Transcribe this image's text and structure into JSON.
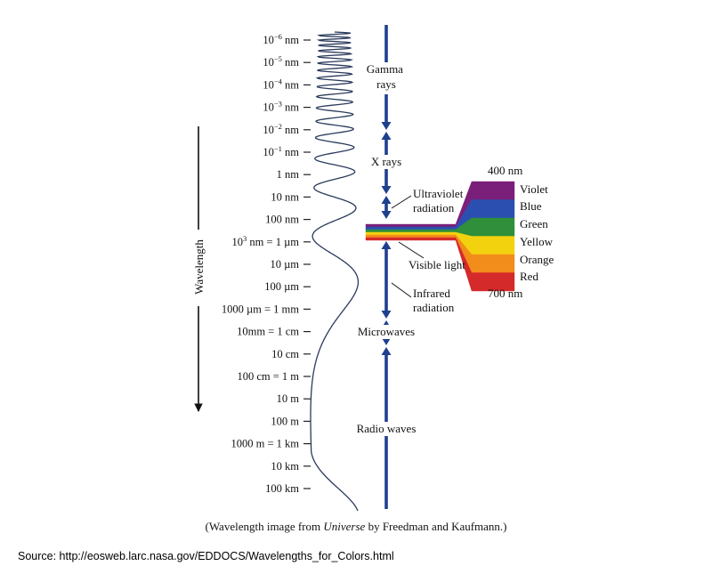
{
  "colors": {
    "arrow": "#1f3f8f",
    "ink": "#222222",
    "text": "#111111",
    "rainbow": [
      "#7a1f7a",
      "#2b4fb0",
      "#2f8f3a",
      "#f2d20f",
      "#f28c1a",
      "#d42a2a"
    ]
  },
  "axis": {
    "title": "Wavelength",
    "ticks": [
      {
        "base": "10",
        "exp": "−6",
        "after": " nm"
      },
      {
        "base": "10",
        "exp": "−5",
        "after": " nm"
      },
      {
        "base": "10",
        "exp": "−4",
        "after": " nm"
      },
      {
        "base": "10",
        "exp": "−3",
        "after": " nm"
      },
      {
        "base": "10",
        "exp": "−2",
        "after": " nm"
      },
      {
        "base": "10",
        "exp": "−1",
        "after": " nm"
      },
      {
        "text": "1 nm"
      },
      {
        "text": "10 nm"
      },
      {
        "text": "100 nm"
      },
      {
        "base": "10",
        "exp": "3",
        "after": " nm = 1 µm"
      },
      {
        "text": "10 µm"
      },
      {
        "text": "100 µm"
      },
      {
        "text": "1000 µm = 1 mm"
      },
      {
        "text": "10mm = 1 cm"
      },
      {
        "text": "10 cm"
      },
      {
        "text": "100 cm = 1 m"
      },
      {
        "text": "10 m"
      },
      {
        "text": "100 m"
      },
      {
        "text": "1000 m = 1 km"
      },
      {
        "text": "10 km"
      },
      {
        "text": "100 km"
      }
    ]
  },
  "bands": {
    "gamma": [
      "Gamma",
      "rays"
    ],
    "xrays": "X rays",
    "uv": [
      "Ultraviolet",
      "radiation"
    ],
    "visible": "Visible light",
    "ir": [
      "Infrared",
      "radiation"
    ],
    "micro": "Microwaves",
    "radio": "Radio waves"
  },
  "visible_detail": {
    "top": "400 nm",
    "bottom": "700 nm",
    "colors": [
      "Violet",
      "Blue",
      "Green",
      "Yellow",
      "Orange",
      "Red"
    ]
  },
  "caption": {
    "before": "(Wavelength image from ",
    "italic": "Universe",
    "after": " by Freedman and Kaufmann.)"
  },
  "source": "Source: http://eosweb.larc.nasa.gov/EDDOCS/Wavelengths_for_Colors.html"
}
